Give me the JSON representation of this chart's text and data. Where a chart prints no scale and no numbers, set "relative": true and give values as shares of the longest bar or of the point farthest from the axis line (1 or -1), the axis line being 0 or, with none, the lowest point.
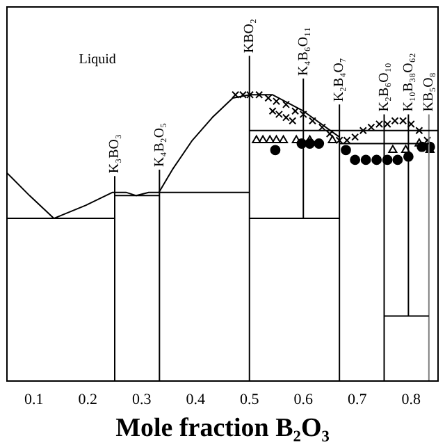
{
  "chart_data": {
    "type": "line",
    "relative": true,
    "xlabel": "Mole fraction B₂O₃",
    "xlim": [
      0.05,
      0.85
    ],
    "xticks": [
      0.1,
      0.2,
      0.3,
      0.4,
      0.5,
      0.6,
      0.7,
      0.8
    ],
    "grid": false,
    "legend": false,
    "annotations": [
      "Liquid",
      {
        "text": "K₃BO₃",
        "x": 0.25,
        "y": 0.63
      },
      {
        "text": "K₄B₂O₅",
        "x": 0.333,
        "y": 0.65
      },
      {
        "text": "KBO₂",
        "x": 0.5,
        "y": 1.0
      },
      {
        "text": "K₄B₆O₁₁",
        "x": 0.6,
        "y": 0.93
      },
      {
        "text": "K₂B₄O₇",
        "x": 0.667,
        "y": 0.85
      },
      {
        "text": "K₂B₆O₁₀",
        "x": 0.75,
        "y": 0.82
      },
      {
        "text": "K₁₀B₃₈O₆₂",
        "x": 0.795,
        "y": 0.82
      },
      {
        "text": "KB₅O₈",
        "x": 0.833,
        "y": 0.82
      }
    ],
    "series": [
      {
        "type": "line",
        "marker": "none",
        "color": "#000000",
        "x": [
          0.05,
          0.092,
          0.137,
          0.196,
          0.246,
          0.271,
          0.29,
          0.313,
          0.332,
          0.357,
          0.394,
          0.431,
          0.469,
          0.501,
          0.543,
          0.6,
          0.667
        ],
        "values": [
          0.64,
          0.57,
          0.5,
          0.54,
          0.58,
          0.58,
          0.57,
          0.58,
          0.58,
          0.65,
          0.74,
          0.81,
          0.87,
          0.88,
          0.88,
          0.83,
          0.75
        ]
      },
      {
        "type": "line",
        "marker": "none",
        "color": "#000000",
        "x": [
          0.05,
          0.25
        ],
        "values": [
          0.5,
          0.5
        ]
      },
      {
        "type": "line",
        "marker": "none",
        "color": "#000000",
        "x": [
          0.25,
          0.333
        ],
        "values": [
          0.57,
          0.57
        ]
      },
      {
        "type": "line",
        "marker": "none",
        "color": "#000000",
        "x": [
          0.333,
          0.5
        ],
        "values": [
          0.58,
          0.58
        ]
      },
      {
        "type": "line",
        "marker": "none",
        "color": "#000000",
        "x": [
          0.5,
          0.85
        ],
        "values": [
          0.77,
          0.77
        ]
      },
      {
        "type": "line",
        "marker": "none",
        "color": "#000000",
        "x": [
          0.5,
          0.667
        ],
        "values": [
          0.5,
          0.5
        ]
      },
      {
        "type": "line",
        "marker": "none",
        "color": "#000000",
        "x": [
          0.667,
          0.833
        ],
        "values": [
          0.73,
          0.73
        ]
      },
      {
        "type": "line",
        "marker": "none",
        "color": "#000000",
        "x": [
          0.75,
          0.833
        ],
        "values": [
          0.2,
          0.2
        ]
      },
      {
        "type": "line",
        "marker": "none",
        "color": "#000000",
        "x": [
          0.25,
          0.25
        ],
        "values": [
          0,
          0.63
        ]
      },
      {
        "type": "line",
        "marker": "none",
        "color": "#000000",
        "x": [
          0.333,
          0.333
        ],
        "values": [
          0,
          0.65
        ]
      },
      {
        "type": "line",
        "marker": "none",
        "color": "#000000",
        "x": [
          0.5,
          0.5
        ],
        "values": [
          0,
          1
        ]
      },
      {
        "type": "line",
        "marker": "none",
        "color": "#000000",
        "x": [
          0.6,
          0.6
        ],
        "values": [
          0.5,
          0.93
        ]
      },
      {
        "type": "line",
        "marker": "none",
        "color": "#000000",
        "x": [
          0.667,
          0.667
        ],
        "values": [
          0,
          0.85
        ]
      },
      {
        "type": "line",
        "marker": "none",
        "color": "#000000",
        "x": [
          0.75,
          0.75
        ],
        "values": [
          0,
          0.82
        ]
      },
      {
        "type": "line",
        "marker": "none",
        "color": "#000000",
        "x": [
          0.795,
          0.795
        ],
        "values": [
          0.2,
          0.82
        ]
      },
      {
        "type": "line",
        "marker": "none",
        "color": "#808080",
        "x": [
          0.833,
          0.833
        ],
        "values": [
          0,
          0.82
        ]
      },
      {
        "type": "scatter",
        "marker": "cross",
        "color": "#000000",
        "x": [
          0.474,
          0.488,
          0.501,
          0.518,
          0.535,
          0.55,
          0.568,
          0.585,
          0.6,
          0.617,
          0.635,
          0.649,
          0.667,
          0.681,
          0.543,
          0.555,
          0.568,
          0.58,
          0.696,
          0.711,
          0.726,
          0.741,
          0.756,
          0.77,
          0.785,
          0.8,
          0.815,
          0.83
        ],
        "values": [
          0.88,
          0.88,
          0.88,
          0.88,
          0.87,
          0.86,
          0.85,
          0.83,
          0.82,
          0.8,
          0.78,
          0.76,
          0.74,
          0.74,
          0.83,
          0.82,
          0.81,
          0.8,
          0.75,
          0.77,
          0.78,
          0.79,
          0.79,
          0.8,
          0.8,
          0.79,
          0.77,
          0.74
        ]
      },
      {
        "type": "scatter",
        "marker": "triangle",
        "color": "#000000",
        "x": [
          0.513,
          0.525,
          0.538,
          0.55,
          0.563,
          0.587,
          0.6,
          0.612,
          0.654,
          0.766,
          0.79,
          0.815,
          0.835
        ],
        "values": [
          0.74,
          0.74,
          0.74,
          0.74,
          0.74,
          0.74,
          null,
          0.74,
          0.74,
          0.71,
          0.71,
          0.73,
          0.71
        ]
      },
      {
        "type": "scatter",
        "marker": "circle",
        "color": "#000000",
        "x": [
          0.548,
          0.597,
          0.612,
          0.629,
          0.679,
          0.696,
          0.716,
          0.736,
          0.756,
          0.775,
          0.795,
          0.82,
          0.835
        ],
        "values": [
          0.71,
          0.73,
          0.73,
          0.73,
          0.71,
          0.68,
          0.68,
          0.68,
          0.68,
          0.68,
          0.69,
          0.72,
          0.72
        ]
      }
    ]
  }
}
